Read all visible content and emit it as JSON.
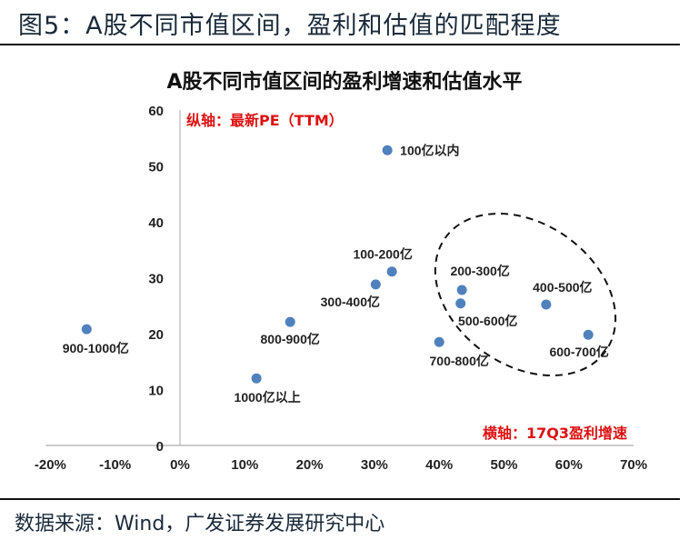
{
  "figure_title": "图5：A股不同市值区间，盈利和估值的匹配程度",
  "source": "数据来源：Wind，广发证券发展研究中心",
  "chart_data": {
    "type": "scatter",
    "title": "A股不同市值区间的盈利增速和估值水平",
    "xlabel": "横轴：17Q3盈利增速",
    "ylabel": "纵轴：最新PE（TTM）",
    "xlim": [
      -20,
      70
    ],
    "ylim": [
      0,
      60
    ],
    "x_ticks": [
      "-20%",
      "-10%",
      "0%",
      "10%",
      "20%",
      "30%",
      "40%",
      "50%",
      "60%",
      "70%"
    ],
    "y_ticks": [
      "0",
      "10",
      "20",
      "30",
      "40",
      "50",
      "60"
    ],
    "grid": false,
    "marker_color": "#4f81bd",
    "points": [
      {
        "label": "100亿以内",
        "x": 32.0,
        "y": 52.8
      },
      {
        "label": "100-200亿",
        "x": 32.7,
        "y": 31.1
      },
      {
        "label": "200-300亿",
        "x": 43.5,
        "y": 27.8
      },
      {
        "label": "300-400亿",
        "x": 30.2,
        "y": 28.8
      },
      {
        "label": "400-500亿",
        "x": 56.5,
        "y": 25.2
      },
      {
        "label": "500-600亿",
        "x": 43.3,
        "y": 25.4
      },
      {
        "label": "600-700亿",
        "x": 63.0,
        "y": 19.8
      },
      {
        "label": "700-800亿",
        "x": 40.0,
        "y": 18.5
      },
      {
        "label": "800-900亿",
        "x": 17.0,
        "y": 22.1
      },
      {
        "label": "900-1000亿",
        "x": -14.4,
        "y": 20.8
      },
      {
        "label": "1000亿以上",
        "x": 11.8,
        "y": 12.0
      }
    ],
    "annotation": "dashed ellipse around 200-300亿, 400-500亿, 500-600亿, 600-700亿"
  }
}
